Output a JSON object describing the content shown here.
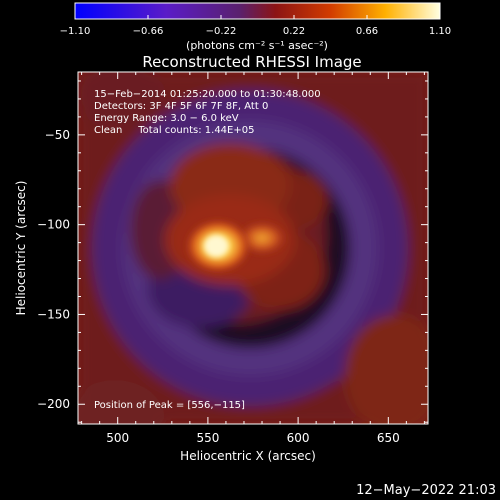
{
  "chart_data": {
    "type": "heatmap",
    "title": "Reconstructed RHESSI Image",
    "colorbar": {
      "colormap": "hot (black-blue-violet-red-orange-yellow-white)",
      "range": [
        -1.1,
        1.1
      ],
      "tick_labels": [
        "−1.10",
        "−0.66",
        "−0.22",
        "0.22",
        "0.66",
        "1.10"
      ],
      "ticks": [
        -1.1,
        -0.66,
        -0.22,
        0.22,
        0.66,
        1.1
      ],
      "unit_label": "(photons cm⁻² s⁻¹ asec⁻²)"
    },
    "xlabel": "Heliocentric X (arcsec)",
    "ylabel": "Heliocentric Y (arcsec)",
    "xlim": [
      478,
      672
    ],
    "ylim": [
      -211,
      -15
    ],
    "x_ticks": [
      500,
      550,
      600,
      650
    ],
    "x_tick_labels": [
      "500",
      "550",
      "600",
      "650"
    ],
    "y_ticks": [
      -50,
      -100,
      -150,
      -200
    ],
    "y_tick_labels": [
      "−50",
      "−100",
      "−150",
      "−200"
    ],
    "annotations": [
      "15−Feb−2014 01:25:20.000 to 01:30:48.000",
      "Detectors: 3F 4F 5F 6F 7F 8F, Att 0",
      "Energy Range: 3.0 − 6.0 keV",
      "Clean     Total counts: 1.44E+05"
    ],
    "peak_label": "Position of Peak = [556,−115]",
    "peak_position": [
      556,
      -115
    ],
    "total_counts": 144000.0,
    "sources": [
      {
        "x": 556,
        "y": -115,
        "peak_value": 1.1
      },
      {
        "x": 578,
        "y": -110,
        "peak_value": 0.75
      }
    ]
  },
  "footer": {
    "timestamp": "12−May−2022 21:03"
  }
}
